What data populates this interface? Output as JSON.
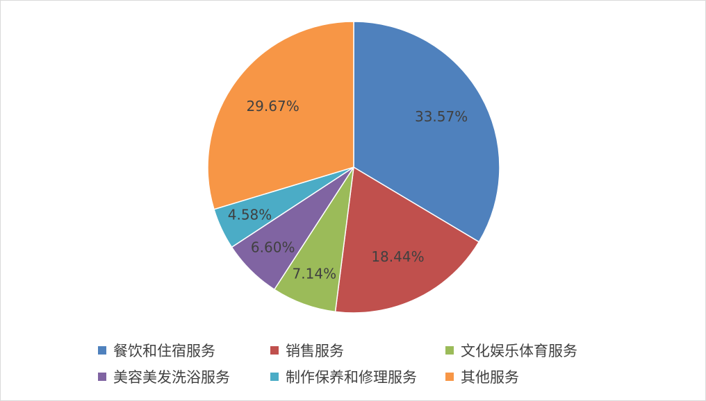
{
  "chart_data": {
    "type": "pie",
    "title": "",
    "legend_position": "bottom",
    "start_angle_deg": 0,
    "direction": "clockwise",
    "slices": [
      {
        "name": "餐饮和住宿服务",
        "value": 33.57,
        "label": "33.57%",
        "color": "#4F81BD"
      },
      {
        "name": "销售服务",
        "value": 18.44,
        "label": "18.44%",
        "color": "#C0504D"
      },
      {
        "name": "文化娱乐体育服务",
        "value": 7.14,
        "label": "7.14%",
        "color": "#9BBB59"
      },
      {
        "name": "美容美发洗浴服务",
        "value": 6.6,
        "label": "6.60%",
        "color": "#8064A2"
      },
      {
        "name": "制作保养和修理服务",
        "value": 4.58,
        "label": "4.58%",
        "color": "#4BACC6"
      },
      {
        "name": "其他服务",
        "value": 29.67,
        "label": "29.67%",
        "color": "#F79646"
      }
    ]
  }
}
